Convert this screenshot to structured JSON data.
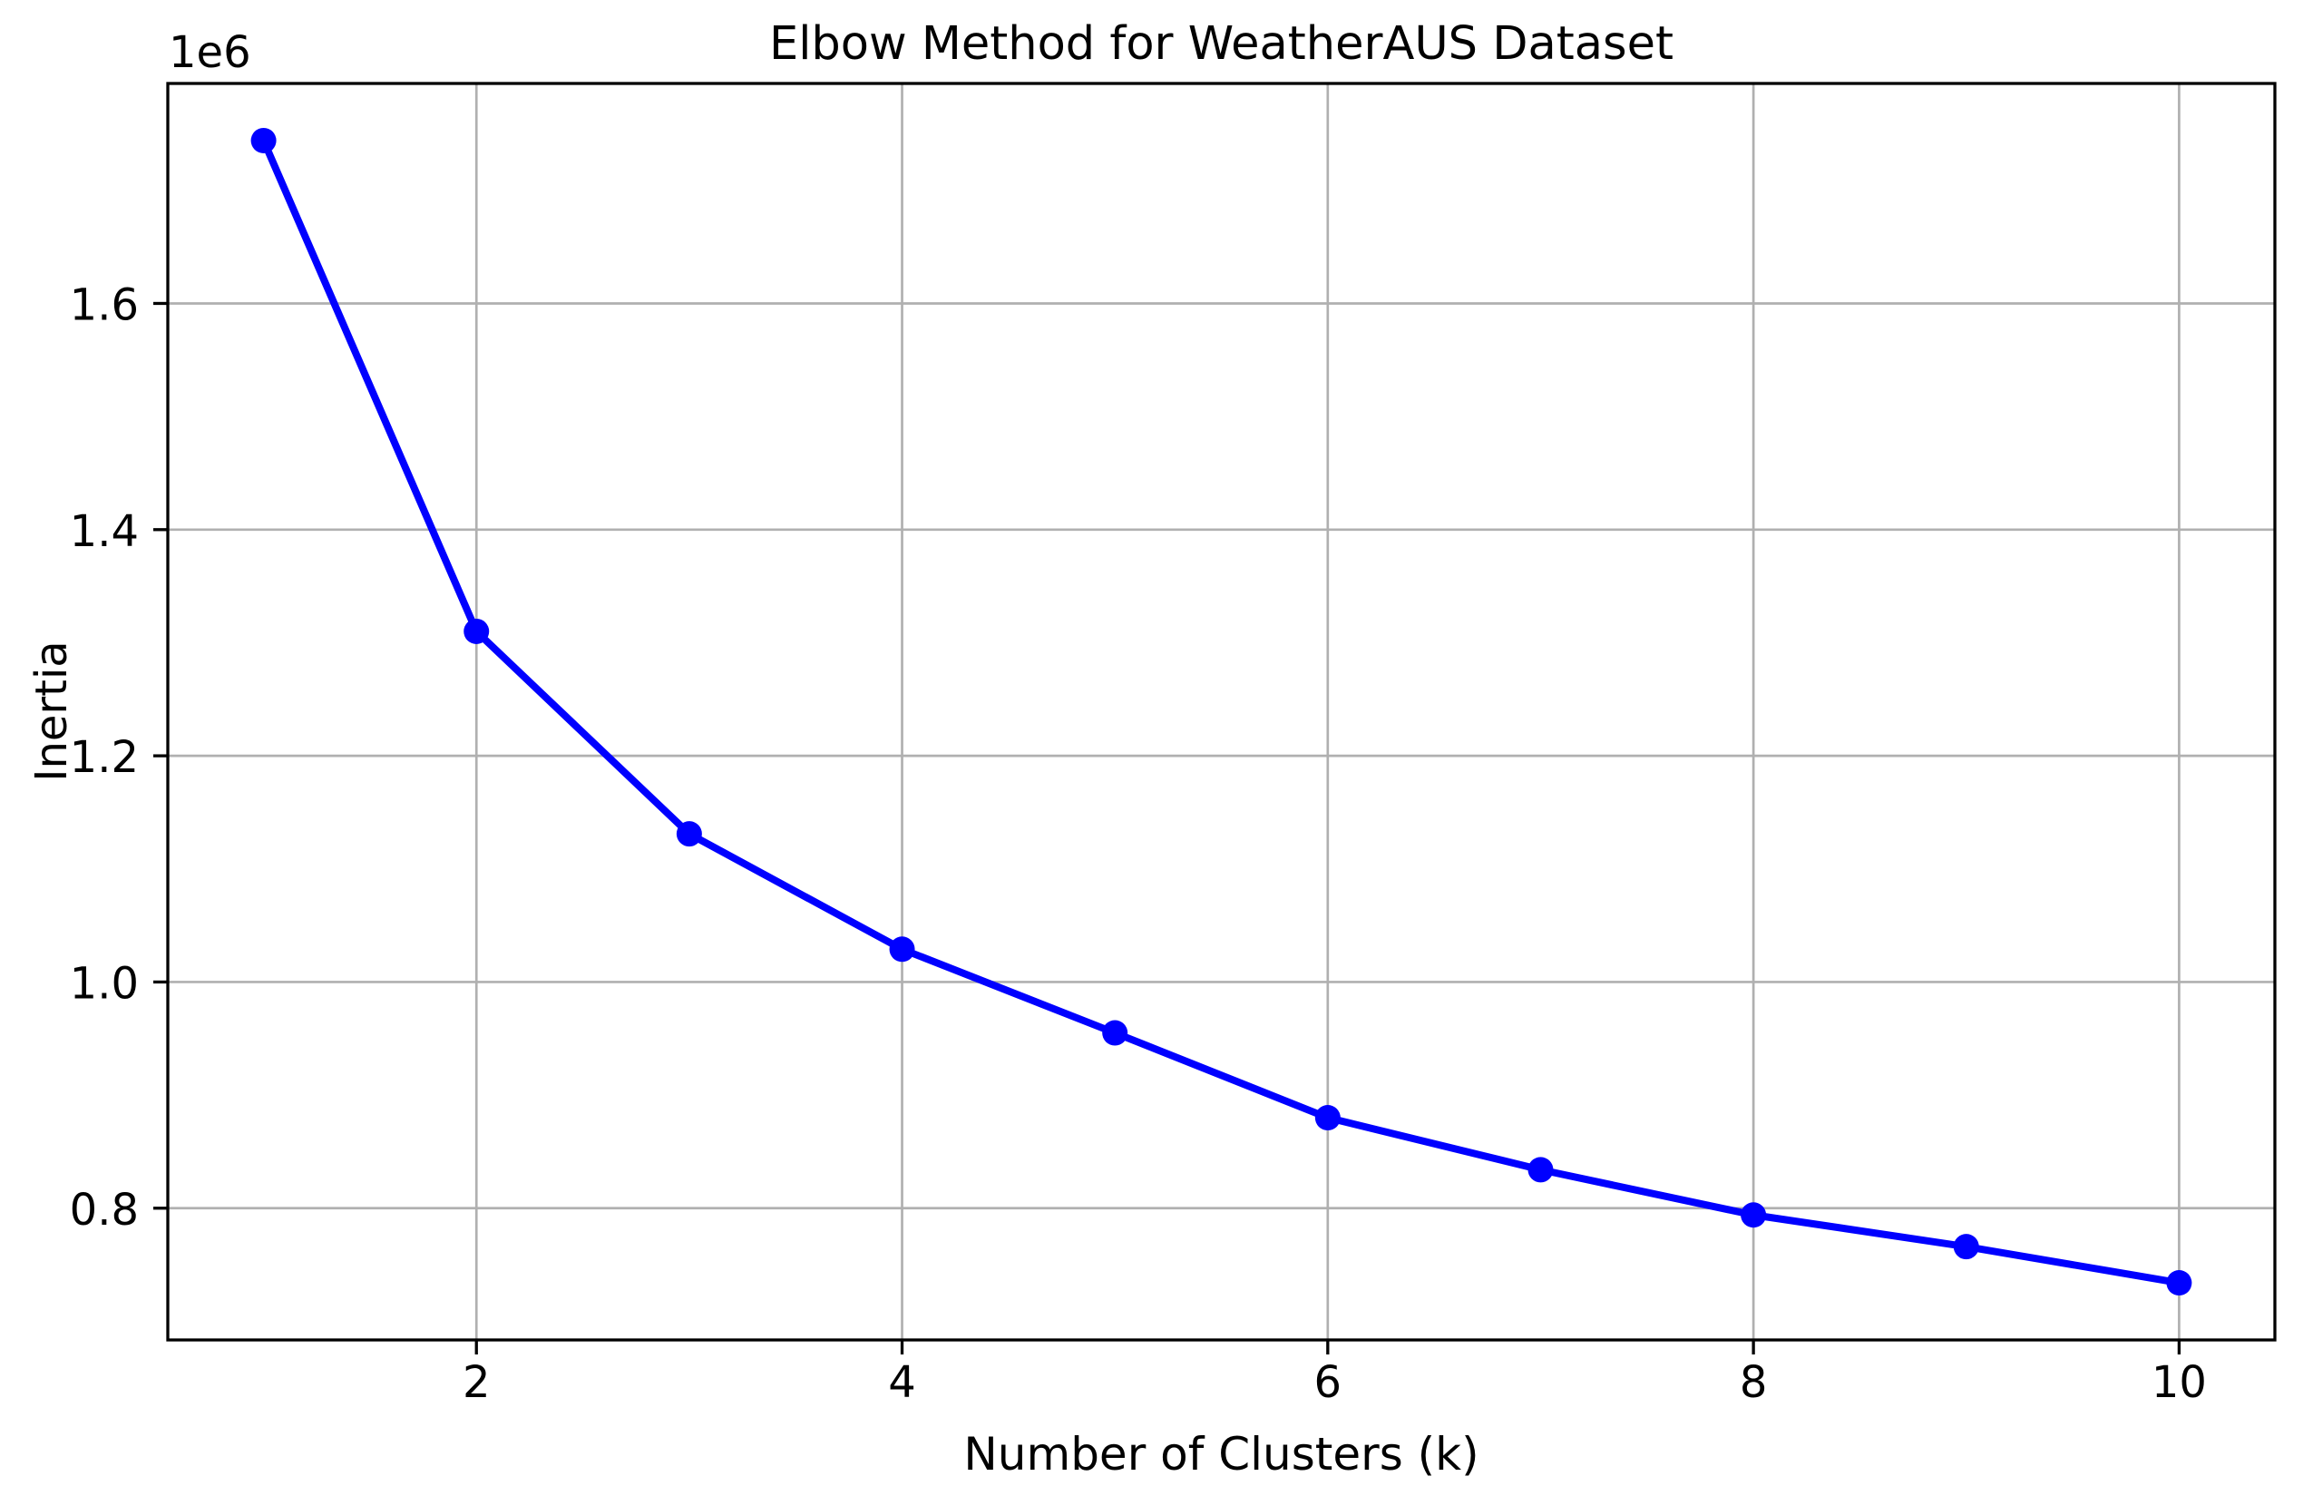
{
  "chart_data": {
    "type": "line",
    "title": "Elbow Method for WeatherAUS Dataset",
    "xlabel": "Number of Clusters (k)",
    "ylabel": "Inertia",
    "y_offset_label": "1e6",
    "x": [
      1,
      2,
      3,
      4,
      5,
      6,
      7,
      8,
      9,
      10
    ],
    "series": [
      {
        "name": "Inertia",
        "values": [
          1744000,
          1310000,
          1131000,
          1029000,
          955000,
          880000,
          834000,
          794000,
          766000,
          734000
        ]
      }
    ],
    "xticks": [
      2,
      4,
      6,
      8,
      10
    ],
    "xtick_labels": [
      "2",
      "4",
      "6",
      "8",
      "10"
    ],
    "yticks": [
      800000,
      1000000,
      1200000,
      1400000,
      1600000
    ],
    "ytick_labels": [
      "0.8",
      "1.0",
      "1.2",
      "1.4",
      "1.6"
    ],
    "xlim": [
      0.55,
      10.45
    ],
    "ylim": [
      683500,
      1794500
    ],
    "grid": true,
    "legend_position": "none",
    "line_color": "#0000ff",
    "marker": "o",
    "marker_color": "#0000ff",
    "grid_color": "#b0b0b0",
    "spine_color": "#000000",
    "background_color": "#ffffff"
  }
}
